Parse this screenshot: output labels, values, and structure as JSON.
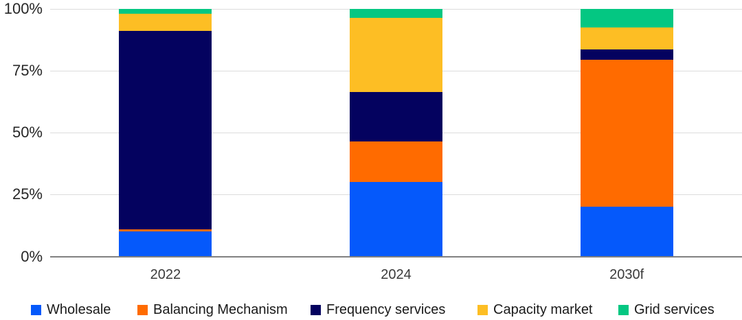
{
  "chart_data": {
    "type": "bar",
    "stacked": true,
    "percent_stacked": true,
    "title": "",
    "xlabel": "",
    "ylabel": "",
    "categories": [
      "2022",
      "2024",
      "2030f"
    ],
    "series": [
      {
        "name": "Wholesale",
        "color": "#0559fb",
        "values": [
          10,
          30,
          20
        ]
      },
      {
        "name": "Balancing Mechanism",
        "color": "#ff6b00",
        "values": [
          1,
          16.5,
          59.5
        ]
      },
      {
        "name": "Frequency services",
        "color": "#04025f",
        "values": [
          80,
          20,
          4
        ]
      },
      {
        "name": "Capacity market",
        "color": "#fdbe24",
        "values": [
          7,
          30,
          9
        ]
      },
      {
        "name": "Grid services",
        "color": "#04c782",
        "values": [
          2,
          3.5,
          7.5
        ]
      }
    ],
    "ylim": [
      0,
      100
    ],
    "y_ticks": [
      {
        "value": 0,
        "label": "0%"
      },
      {
        "value": 25,
        "label": "25%"
      },
      {
        "value": 50,
        "label": "50%"
      },
      {
        "value": 75,
        "label": "75%"
      },
      {
        "value": 100,
        "label": "100%"
      }
    ],
    "grid": true,
    "legend_position": "bottom",
    "axis_colors": {
      "gridline": "#dcdcdc",
      "baseline": "#808080",
      "tick_text": "#262626",
      "legend_text": "#1a1a1a"
    }
  }
}
